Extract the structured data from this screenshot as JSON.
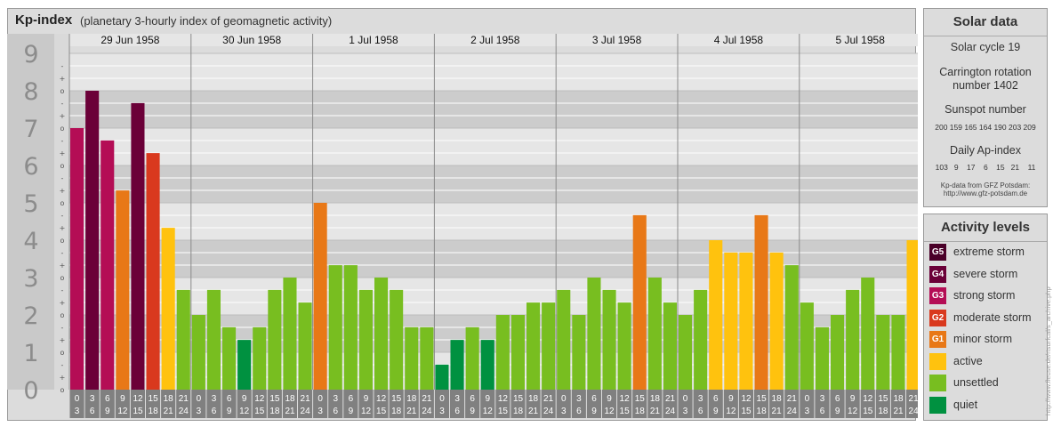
{
  "title": "Kp-index",
  "subtitle": "(planetary 3-hourly index of geomagnetic activity)",
  "chart_data": {
    "type": "bar",
    "title": "Kp-index",
    "subtitle": "(planetary 3-hourly index of geomagnetic activity)",
    "ylim": [
      0,
      9
    ],
    "y_ticks": [
      "0",
      "1",
      "2",
      "3",
      "4",
      "5",
      "6",
      "7",
      "8",
      "9"
    ],
    "minor_tick_marks": [
      "o",
      "+",
      "-"
    ],
    "days": [
      "29 Jun 1958",
      "30 Jun 1958",
      "1 Jul 1958",
      "2 Jul 1958",
      "3 Jul 1958",
      "4 Jul 1958",
      "5 Jul 1958"
    ],
    "interval_labels": [
      [
        "0",
        "3"
      ],
      [
        "3",
        "6"
      ],
      [
        "6",
        "9"
      ],
      [
        "9",
        "12"
      ],
      [
        "12",
        "15"
      ],
      [
        "15",
        "18"
      ],
      [
        "18",
        "21"
      ],
      [
        "21",
        "24"
      ]
    ],
    "values": [
      [
        7.0,
        8.0,
        6.67,
        5.33,
        7.67,
        6.33,
        4.33,
        2.67
      ],
      [
        2.0,
        2.67,
        1.67,
        1.33,
        1.67,
        2.67,
        3.0,
        2.33
      ],
      [
        5.0,
        3.33,
        3.33,
        2.67,
        3.0,
        2.67,
        1.67,
        1.67
      ],
      [
        0.67,
        1.33,
        1.67,
        1.33,
        2.0,
        2.0,
        2.33,
        2.33
      ],
      [
        2.67,
        2.0,
        3.0,
        2.67,
        2.33,
        4.67,
        3.0,
        2.33
      ],
      [
        2.0,
        2.67,
        4.0,
        3.67,
        3.67,
        4.67,
        3.67,
        3.33
      ],
      [
        2.33,
        1.67,
        2.0,
        2.67,
        3.0,
        2.0,
        2.0,
        4.0
      ]
    ],
    "level_colors": {
      "quiet": "#009140",
      "unsettled": "#78be20",
      "active": "#ffc20e",
      "minor": "#e87817",
      "moderate": "#d9391e",
      "strong": "#b40d55",
      "severe": "#6b0038",
      "extreme": "#4a0028"
    }
  },
  "solar": {
    "header": "Solar data",
    "cycle": "Solar cycle 19",
    "carrington_1": "Carrington rotation",
    "carrington_2": "number 1402",
    "sunspot_label": "Sunspot number",
    "sunspot_values": "200 159 165 164 190 203 209",
    "ap_label": "Daily Ap-index",
    "ap_values": "103   9    17    6    15   21    11",
    "source_1": "Kp-data from GFZ Potsdam:",
    "source_2": "http://www.gfz-potsdam.de"
  },
  "activity": {
    "header": "Activity levels",
    "items": [
      {
        "badge": "G5",
        "label": "extreme storm",
        "color": "#4a0028"
      },
      {
        "badge": "G4",
        "label": "severe storm",
        "color": "#6b0038"
      },
      {
        "badge": "G3",
        "label": "strong storm",
        "color": "#b40d55"
      },
      {
        "badge": "G2",
        "label": "moderate storm",
        "color": "#d9391e"
      },
      {
        "badge": "G1",
        "label": "minor storm",
        "color": "#e87817"
      },
      {
        "badge": "",
        "label": "active",
        "color": "#ffc20e"
      },
      {
        "badge": "",
        "label": "unsettled",
        "color": "#78be20"
      },
      {
        "badge": "",
        "label": "quiet",
        "color": "#009140"
      }
    ]
  },
  "credit": "http://www.fleuse.de/rtsurfcal/s_archive.php"
}
